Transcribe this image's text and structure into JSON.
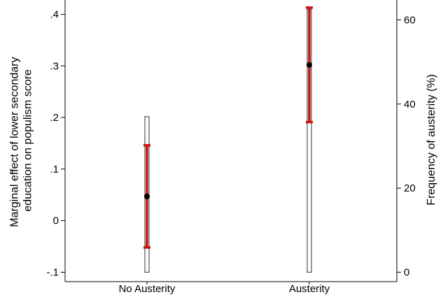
{
  "chart_data": {
    "type": "scatter",
    "categories": [
      "No Austerity",
      "Austerity"
    ],
    "ylabel_left": [
      "Marginal effect of lower secondary",
      "education on populism score"
    ],
    "ylabel_right": "Frequency of austerity (%)",
    "left_axis": {
      "ylim": [
        -0.1,
        0.4
      ],
      "ticks": [
        -0.1,
        0,
        0.1,
        0.2,
        0.3,
        0.4
      ],
      "tick_labels": [
        "-.1",
        "0",
        ".1",
        ".2",
        ".3",
        ".4"
      ]
    },
    "right_axis": {
      "ylim": [
        0,
        60
      ],
      "ticks": [
        0,
        20,
        40,
        60
      ],
      "tick_labels": [
        "0",
        "20",
        "40",
        "60"
      ]
    },
    "estimates": [
      {
        "category": "No Austerity",
        "value": 0.047,
        "ci_low": -0.052,
        "ci_high": 0.146
      },
      {
        "category": "Austerity",
        "value": 0.302,
        "ci_low": 0.191,
        "ci_high": 0.413
      }
    ],
    "frequency_bars": [
      {
        "category": "No Austerity",
        "value": 37.0
      },
      {
        "category": "Austerity",
        "value": 62.5
      }
    ],
    "colors": {
      "ci": "#cc1111",
      "point": "#000000",
      "bar_stroke": "#333333",
      "axis": "#000000"
    },
    "grid": false,
    "legend": "none"
  }
}
